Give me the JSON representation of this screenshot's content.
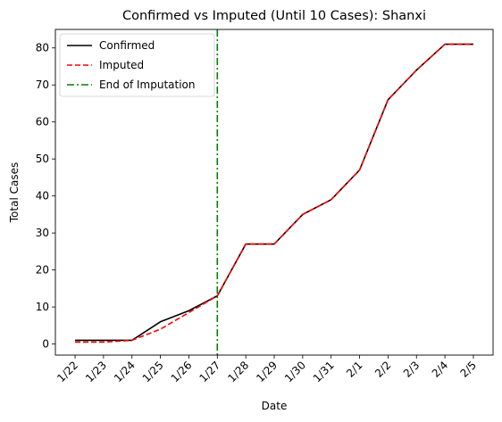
{
  "chart_data": {
    "type": "line",
    "title": "Confirmed vs Imputed (Until 10 Cases): Shanxi",
    "xlabel": "Date",
    "ylabel": "Total Cases",
    "categories": [
      "1/22",
      "1/23",
      "1/24",
      "1/25",
      "1/26",
      "1/27",
      "1/28",
      "1/29",
      "1/30",
      "1/31",
      "2/1",
      "2/2",
      "2/3",
      "2/4",
      "2/5"
    ],
    "series": [
      {
        "name": "Confirmed",
        "color": "#000000",
        "style": "solid",
        "values": [
          1,
          1,
          1,
          6,
          9,
          13,
          27,
          27,
          35,
          39,
          47,
          66,
          74,
          81,
          81
        ]
      },
      {
        "name": "Imputed",
        "color": "#ff0000",
        "style": "dashed",
        "values": [
          0.5,
          0.5,
          1,
          4,
          8.5,
          13,
          27,
          27,
          35,
          39,
          47,
          66,
          74,
          81,
          81
        ]
      }
    ],
    "vline": {
      "name": "End of Imputation",
      "color": "#008000",
      "style": "dashdot",
      "x": "1/27"
    },
    "ylim": [
      -3,
      85
    ],
    "yticks": [
      0,
      10,
      20,
      30,
      40,
      50,
      60,
      70,
      80
    ],
    "legend": "top-left",
    "grid": false
  }
}
